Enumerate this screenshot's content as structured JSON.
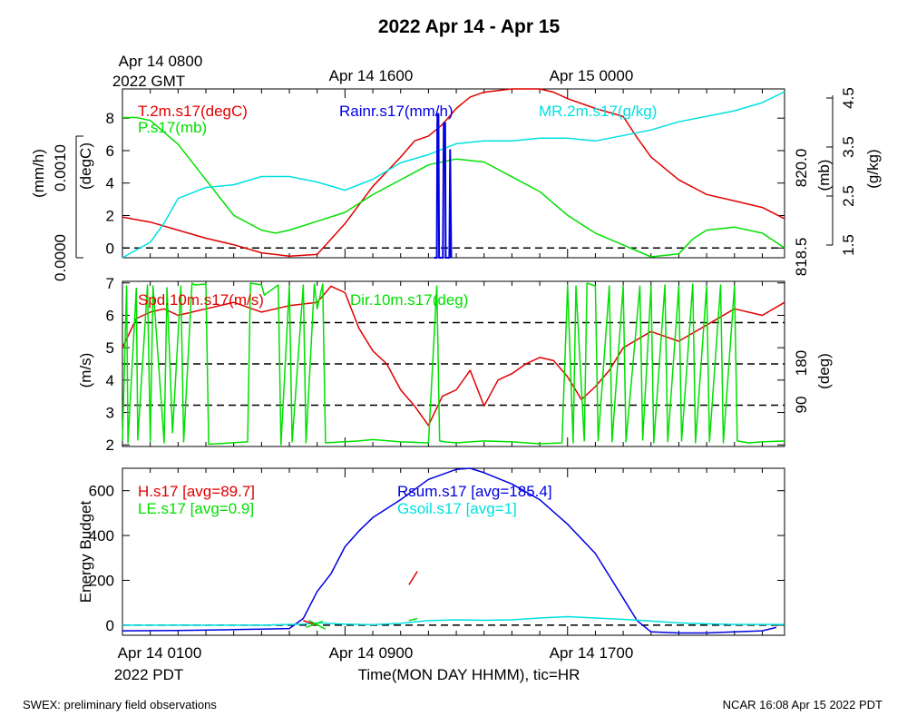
{
  "title": "2022 Apr 14 - Apr 15",
  "footer_left": "SWEX: preliminary field observations",
  "footer_right": "NCAR 16:08 Apr 15 2022 PDT",
  "top_axis": {
    "tick_labels": [
      "Apr 14 0800",
      "Apr 14 1600",
      "Apr 15 0000"
    ],
    "tz_label": "2022 GMT"
  },
  "bottom_axis": {
    "tick_labels": [
      "Apr 14 0100",
      "Apr 14 0900",
      "Apr 14 1700"
    ],
    "tz_label": "2022 PDT",
    "xlabel": "Time(MON DAY HHMM), tic=HR"
  },
  "colors": {
    "red": "#e00000",
    "green": "#00e000",
    "blue": "#0000e0",
    "cyan": "#00e0e0",
    "black": "#000000"
  },
  "chart_data": [
    {
      "type": "line",
      "panel": "top",
      "x_unit": "hours since Apr 14 0100 PDT",
      "xlim": [
        0,
        23.8
      ],
      "axes": {
        "left_outer": {
          "label": "(mm/h)",
          "ticks": [
            "0.0000",
            "0.0010"
          ]
        },
        "left_inner": {
          "label": "(degC)",
          "ticks": [
            "0",
            "2",
            "4",
            "6",
            "8"
          ],
          "range": [
            -0.6,
            9.8
          ]
        },
        "right_inner": {
          "label": "(mb)",
          "ticks": [
            "818.5",
            "820.0"
          ]
        },
        "right_outer": {
          "label": "(g/kg)",
          "ticks": [
            "1.5",
            "2.5",
            "3.5",
            "4.5"
          ],
          "range": [
            1.5,
            4.55
          ]
        }
      },
      "reference_lines": [
        0
      ],
      "legend": [
        {
          "label": "T.2m.s17(degC)",
          "color": "#e00000"
        },
        {
          "label": "P.s17(mb)",
          "color": "#00e000"
        },
        {
          "label": "Rainr.s17(mm/h)",
          "color": "#0000e0"
        },
        {
          "label": "MR.2m.s17(g/kg)",
          "color": "#00e0e0"
        }
      ],
      "series": [
        {
          "name": "T.2m.s17(degC)",
          "color": "#e00000",
          "axis": "degC",
          "x": [
            0,
            1,
            2,
            3,
            4,
            5,
            6,
            7,
            8,
            9,
            10,
            10.5,
            11,
            11.5,
            12,
            12.5,
            13,
            14,
            15,
            15.5,
            16,
            17,
            18,
            18.5,
            19,
            20,
            21,
            22,
            23,
            23.8
          ],
          "y": [
            1.9,
            1.6,
            1.1,
            0.6,
            0.2,
            -0.3,
            -0.5,
            -0.4,
            1.5,
            3.8,
            5.6,
            6.6,
            6.9,
            7.6,
            8.6,
            9.3,
            9.6,
            10.2,
            10.5,
            9.6,
            9.2,
            8.6,
            8.1,
            6.8,
            5.6,
            4.2,
            3.3,
            2.9,
            2.5,
            1.8
          ]
        },
        {
          "name": "P.s17(mb)",
          "color": "#00e000",
          "axis": "mb",
          "x": [
            0,
            0.5,
            1,
            1.5,
            2,
            3,
            4,
            5,
            5.5,
            6,
            7,
            8,
            9,
            10,
            11,
            12,
            13,
            14,
            15,
            16,
            17,
            18,
            18.5,
            19,
            20,
            20.5,
            21,
            22,
            23,
            23.8
          ],
          "y": [
            820.85,
            820.85,
            820.8,
            820.6,
            820.4,
            819.8,
            819.2,
            818.95,
            818.9,
            818.95,
            819.1,
            819.25,
            819.55,
            819.8,
            820.05,
            820.15,
            820.1,
            819.85,
            819.6,
            819.2,
            818.9,
            818.7,
            818.6,
            818.5,
            818.55,
            818.8,
            818.95,
            819.0,
            818.9,
            818.65
          ]
        },
        {
          "name": "MR.2m.s17(g/kg)",
          "color": "#00e0e0",
          "axis": "g/kg",
          "x": [
            0,
            1,
            1.5,
            2,
            3,
            4,
            5,
            6,
            7,
            8,
            9,
            10,
            11,
            12,
            13,
            14,
            15,
            16,
            17,
            18,
            19,
            20,
            21,
            22,
            23,
            23.8
          ],
          "y": [
            1.45,
            1.75,
            2.1,
            2.55,
            2.75,
            2.8,
            2.95,
            2.95,
            2.85,
            2.7,
            2.9,
            3.2,
            3.35,
            3.55,
            3.6,
            3.6,
            3.65,
            3.65,
            3.6,
            3.7,
            3.8,
            3.95,
            4.05,
            4.15,
            4.3,
            4.5
          ]
        },
        {
          "name": "Rainr.s17(mm/h)",
          "color": "#0000e0",
          "axis": "mm/h",
          "x": [
            11.2,
            11.3,
            11.32,
            11.36,
            11.38,
            11.52,
            11.55,
            11.6,
            11.62,
            11.75,
            11.78,
            11.82
          ],
          "y": [
            0,
            0,
            0.0016,
            0.0016,
            0,
            0,
            0.0015,
            0.0015,
            0,
            0,
            0.0012,
            0
          ]
        }
      ]
    },
    {
      "type": "line",
      "panel": "middle",
      "x_unit": "hours since Apr 14 0100 PDT",
      "xlim": [
        0,
        23.8
      ],
      "axes": {
        "left": {
          "label": "(m/s)",
          "ticks": [
            "2",
            "3",
            "4",
            "5",
            "6",
            "7"
          ],
          "range": [
            1.95,
            7.05
          ]
        },
        "right": {
          "label": "(deg)",
          "ticks": [
            "90",
            "180"
          ],
          "range": [
            0,
            360
          ]
        }
      },
      "reference_lines_deg": [
        90,
        180,
        270
      ],
      "legend": [
        {
          "label": "Spd.10m.s17(m/s)",
          "color": "#e00000"
        },
        {
          "label": "Dir.10m.s17(deg)",
          "color": "#00e000"
        }
      ],
      "series": [
        {
          "name": "Spd.10m.s17(m/s)",
          "color": "#e00000",
          "axis": "m/s",
          "x": [
            0,
            0.5,
            1,
            1.5,
            2,
            3,
            4,
            5,
            6,
            7,
            7.5,
            8,
            8.5,
            9,
            9.5,
            10,
            10.5,
            11,
            11.5,
            12,
            12.5,
            13,
            13.5,
            14,
            14.5,
            15,
            15.5,
            16,
            16.5,
            17,
            17.5,
            18,
            19,
            20,
            21,
            22,
            23,
            23.8
          ],
          "y": [
            5.0,
            5.9,
            6.1,
            6.2,
            6.0,
            6.2,
            6.4,
            6.1,
            6.3,
            6.4,
            6.9,
            6.7,
            5.6,
            4.9,
            4.5,
            3.7,
            3.2,
            2.6,
            3.5,
            3.7,
            4.3,
            3.2,
            4.0,
            4.2,
            4.5,
            4.7,
            4.6,
            4.1,
            3.4,
            3.8,
            4.3,
            5.0,
            5.5,
            5.2,
            5.7,
            6.2,
            6.0,
            6.4
          ]
        },
        {
          "name": "Dir.10m.s17(deg)",
          "color": "#00e000",
          "axis": "deg",
          "x": [
            0,
            0.15,
            0.2,
            0.5,
            0.55,
            0.9,
            1.0,
            1.1,
            1.5,
            1.6,
            1.8,
            2.1,
            2.2,
            2.5,
            2.6,
            3.0,
            3.1,
            4.5,
            4.6,
            5.0,
            5.1,
            5.6,
            5.7,
            6.0,
            6.1,
            6.5,
            6.6,
            6.9,
            7.0,
            7.2,
            7.3,
            8.5,
            9.0,
            10.0,
            11.0,
            11.3,
            11.4,
            11.6,
            12.0,
            13.0,
            14.0,
            15.0,
            15.8,
            16.0,
            16.2,
            16.3,
            16.6,
            16.7,
            17.0,
            17.1,
            17.5,
            17.6,
            18.0,
            18.1,
            18.6,
            18.7,
            19.0,
            19.1,
            19.5,
            19.6,
            20.0,
            20.1,
            20.5,
            20.6,
            21.0,
            21.1,
            21.5,
            21.6,
            22.0,
            22.1,
            22.5,
            23.0,
            23.8
          ],
          "y": [
            12,
            350,
            8,
            345,
            14,
            352,
            10,
            350,
            8,
            346,
            30,
            350,
            10,
            356,
            352,
            354,
            5,
            10,
            356,
            352,
            330,
            352,
            4,
            350,
            10,
            352,
            8,
            354,
            300,
            354,
            8,
            12,
            15,
            10,
            8,
            350,
            12,
            10,
            8,
            12,
            10,
            6,
            8,
            352,
            8,
            350,
            12,
            356,
            350,
            12,
            350,
            10,
            350,
            10,
            350,
            14,
            350,
            8,
            352,
            10,
            350,
            12,
            354,
            8,
            350,
            10,
            352,
            8,
            350,
            12,
            8,
            10,
            12
          ]
        }
      ]
    },
    {
      "type": "line",
      "panel": "bottom",
      "x_unit": "hours since Apr 14 0100 PDT",
      "xlim": [
        0,
        23.8
      ],
      "axes": {
        "left": {
          "label": "Energy Budget",
          "ticks": [
            "0",
            "200",
            "400",
            "600"
          ],
          "range": [
            -45,
            700
          ]
        }
      },
      "reference_lines": [
        0
      ],
      "legend": [
        {
          "label": "H.s17 [avg=89.7]",
          "color": "#e00000"
        },
        {
          "label": "LE.s17 [avg=0.9]",
          "color": "#00e000"
        },
        {
          "label": "Rsum.s17 [avg=185.4]",
          "color": "#0000e0"
        },
        {
          "label": "Gsoil.s17 [avg=1]",
          "color": "#00e0e0"
        }
      ],
      "series": [
        {
          "name": "Rsum.s17 [avg=185.4]",
          "color": "#0000e0",
          "x": [
            0,
            2,
            4,
            5,
            6,
            6.5,
            7,
            7.5,
            8,
            8.5,
            9,
            10,
            11,
            12,
            12.5,
            13,
            14,
            15,
            16,
            17,
            18,
            18.5,
            19,
            20,
            21,
            22,
            23,
            23.5
          ],
          "y": [
            -25,
            -24,
            -20,
            -18,
            -15,
            30,
            150,
            230,
            350,
            420,
            480,
            560,
            650,
            695,
            700,
            680,
            630,
            560,
            450,
            320,
            120,
            20,
            -30,
            -35,
            -35,
            -30,
            -25,
            -10
          ]
        },
        {
          "name": "Gsoil.s17 [avg=1]",
          "color": "#00e0e0",
          "x": [
            0,
            5,
            6.5,
            7,
            8,
            9,
            10,
            11,
            12,
            13,
            14,
            15,
            16,
            17,
            18,
            19,
            20,
            21,
            22,
            23,
            23.8
          ],
          "y": [
            0,
            0,
            5,
            10,
            5,
            2,
            8,
            20,
            24,
            22,
            24,
            32,
            38,
            32,
            26,
            18,
            10,
            6,
            3,
            3,
            3
          ]
        },
        {
          "name": "H.s17 [avg=89.7]",
          "color": "#e00000",
          "segments": [
            {
              "x": [
                6.5,
                7.0
              ],
              "y": [
                20,
                0
              ]
            },
            {
              "x": [
                10.3,
                10.6
              ],
              "y": [
                180,
                240
              ]
            }
          ]
        },
        {
          "name": "LE.s17 [avg=0.9]",
          "color": "#00e000",
          "segments": [
            {
              "x": [
                6.6,
                7.2
              ],
              "y": [
                -10,
                18
              ]
            },
            {
              "x": [
                6.7,
                7.3
              ],
              "y": [
                22,
                -18
              ]
            },
            {
              "x": [
                10.3,
                10.6
              ],
              "y": [
                20,
                30
              ]
            }
          ]
        }
      ]
    }
  ]
}
